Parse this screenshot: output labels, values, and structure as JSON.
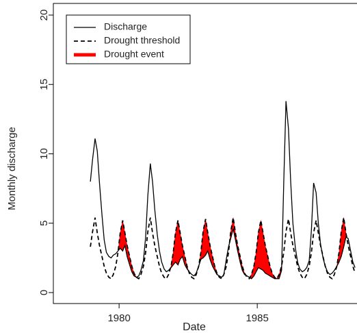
{
  "chart_data": {
    "type": "line",
    "x_label": "Date",
    "y_label": "Monthly discharge",
    "xlim": [
      1977.62,
      1988.61
    ],
    "ylim": [
      -0.79,
      20.84
    ],
    "xticks": [
      1980,
      1985
    ],
    "yticks": [
      0,
      5,
      10,
      15,
      20
    ],
    "legend": "top-left",
    "x": [
      1978.96,
      1979.04,
      1979.13,
      1979.21,
      1979.29,
      1979.38,
      1979.46,
      1979.54,
      1979.63,
      1979.71,
      1979.79,
      1979.88,
      1979.96,
      1980.04,
      1980.13,
      1980.21,
      1980.29,
      1980.38,
      1980.46,
      1980.54,
      1980.63,
      1980.71,
      1980.79,
      1980.88,
      1980.96,
      1981.04,
      1981.13,
      1981.21,
      1981.29,
      1981.38,
      1981.46,
      1981.54,
      1981.63,
      1981.71,
      1981.79,
      1981.88,
      1981.96,
      1982.04,
      1982.13,
      1982.21,
      1982.29,
      1982.38,
      1982.46,
      1982.54,
      1982.63,
      1982.71,
      1982.79,
      1982.88,
      1982.96,
      1983.04,
      1983.13,
      1983.21,
      1983.29,
      1983.38,
      1983.46,
      1983.54,
      1983.63,
      1983.71,
      1983.79,
      1983.88,
      1983.96,
      1984.04,
      1984.13,
      1984.21,
      1984.29,
      1984.38,
      1984.46,
      1984.54,
      1984.63,
      1984.71,
      1984.79,
      1984.88,
      1984.96,
      1985.04,
      1985.13,
      1985.21,
      1985.29,
      1985.38,
      1985.46,
      1985.54,
      1985.63,
      1985.71,
      1985.79,
      1985.88,
      1985.96,
      1986.04,
      1986.13,
      1986.21,
      1986.29,
      1986.38,
      1986.46,
      1986.54,
      1986.63,
      1986.71,
      1986.79,
      1986.88,
      1986.96,
      1987.04,
      1987.13,
      1987.21,
      1987.29,
      1987.38,
      1987.46,
      1987.54,
      1987.63,
      1987.71,
      1987.79,
      1987.88,
      1987.96,
      1988.04,
      1988.13,
      1988.21,
      1988.29,
      1988.38,
      1988.46,
      1988.54
    ],
    "series": [
      {
        "name": "Discharge",
        "color": "#000000",
        "dash": "solid",
        "values": [
          8.0,
          9.6,
          11.1,
          10.2,
          7.9,
          5.6,
          3.8,
          2.9,
          2.6,
          2.5,
          2.7,
          2.8,
          3.0,
          3.2,
          3.0,
          3.4,
          2.6,
          2.0,
          1.5,
          1.2,
          1.1,
          1.2,
          1.6,
          2.3,
          4.0,
          7.0,
          9.3,
          8.0,
          6.0,
          4.2,
          3.0,
          2.2,
          1.7,
          1.5,
          1.6,
          1.8,
          2.0,
          2.2,
          2.0,
          2.4,
          2.6,
          2.0,
          1.7,
          1.5,
          1.3,
          1.2,
          1.4,
          1.9,
          2.4,
          2.5,
          2.7,
          3.0,
          2.4,
          1.9,
          1.6,
          1.3,
          1.2,
          1.1,
          1.3,
          2.4,
          3.3,
          3.9,
          4.6,
          3.8,
          3.0,
          2.2,
          1.6,
          1.3,
          1.2,
          1.1,
          1.0,
          1.2,
          1.5,
          1.8,
          1.7,
          1.6,
          1.4,
          1.3,
          1.2,
          1.1,
          1.0,
          1.0,
          1.0,
          1.6,
          8.0,
          13.8,
          11.8,
          8.0,
          5.0,
          3.2,
          2.2,
          1.7,
          1.5,
          1.6,
          1.8,
          2.3,
          4.5,
          7.9,
          7.2,
          5.0,
          3.5,
          2.5,
          1.9,
          1.5,
          1.3,
          1.4,
          1.6,
          1.9,
          2.2,
          2.6,
          3.3,
          4.0,
          3.9,
          3.0,
          2.2,
          1.8
        ]
      },
      {
        "name": "Drought threshold",
        "color": "#000000",
        "dash": "dashed",
        "values": [
          3.3,
          4.4,
          5.4,
          4.3,
          3.4,
          2.6,
          1.9,
          1.4,
          1.1,
          1.0,
          1.3,
          1.9,
          2.9,
          4.3,
          5.2,
          4.3,
          3.4,
          2.6,
          1.9,
          1.4,
          1.1,
          1.0,
          1.3,
          1.9,
          2.9,
          4.4,
          5.4,
          4.3,
          3.4,
          2.6,
          1.9,
          1.4,
          1.1,
          1.0,
          1.3,
          1.9,
          2.9,
          4.3,
          5.2,
          4.3,
          3.4,
          2.6,
          1.9,
          1.4,
          1.1,
          1.0,
          1.3,
          1.9,
          2.9,
          4.4,
          5.3,
          4.3,
          3.4,
          2.6,
          1.9,
          1.4,
          1.1,
          1.0,
          1.3,
          1.9,
          2.9,
          4.4,
          5.4,
          4.3,
          3.4,
          2.6,
          1.9,
          1.4,
          1.1,
          1.0,
          1.3,
          1.9,
          2.9,
          4.3,
          5.2,
          4.3,
          3.4,
          2.6,
          1.9,
          1.4,
          1.1,
          1.0,
          1.3,
          1.9,
          2.9,
          4.4,
          5.3,
          4.3,
          3.4,
          2.6,
          1.9,
          1.4,
          1.1,
          1.0,
          1.3,
          1.9,
          2.9,
          4.3,
          5.2,
          4.3,
          3.4,
          2.6,
          1.9,
          1.4,
          1.1,
          1.0,
          1.3,
          1.9,
          2.9,
          4.4,
          5.4,
          4.3,
          3.4,
          2.6,
          1.9,
          1.4
        ]
      }
    ],
    "drought_event": {
      "name": "Drought event",
      "color": "#ff0000"
    }
  }
}
